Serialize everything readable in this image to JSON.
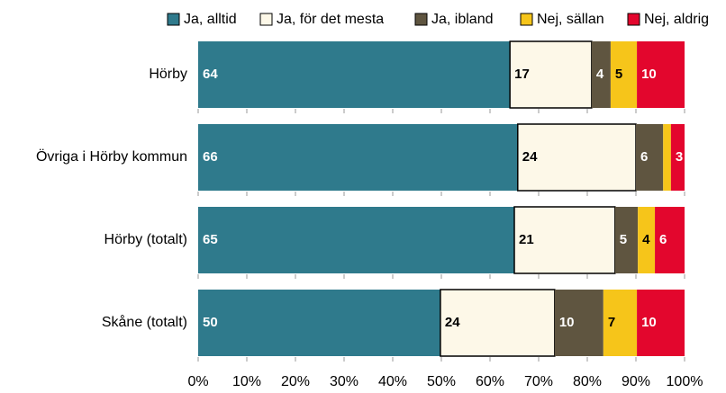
{
  "chart_data": {
    "type": "stacked-barh",
    "categories": [
      "Hörby",
      "Övriga i Hörby kommun",
      "Hörby (totalt)",
      "Skåne (totalt)"
    ],
    "series": [
      {
        "name": "Ja, alltid",
        "color": "#2f7a8c",
        "text_color": "#ffffff",
        "values": [
          64.1,
          65.7,
          65.0,
          49.8
        ],
        "value_labels": [
          "64",
          "66",
          "65",
          "50"
        ]
      },
      {
        "name": "Ja, för det mesta",
        "color": "#fdf8e8",
        "text_color": "#000000",
        "values": [
          16.8,
          24.3,
          20.7,
          23.5
        ],
        "value_labels": [
          "17",
          "24",
          "21",
          "24"
        ]
      },
      {
        "name": "Ja, ibland",
        "color": "#5f5540",
        "text_color": "#ffffff",
        "values": [
          3.9,
          5.6,
          4.7,
          10.0
        ],
        "value_labels": [
          "4",
          "6",
          "5",
          "10"
        ]
      },
      {
        "name": "Nej, sällan",
        "color": "#f6c51a",
        "text_color": "#000000",
        "values": [
          5.4,
          1.6,
          3.5,
          6.9
        ],
        "value_labels": [
          "5",
          null,
          "4",
          "7"
        ]
      },
      {
        "name": "Nej, aldrig",
        "color": "#e3062d",
        "text_color": "#ffffff",
        "values": [
          9.8,
          2.8,
          6.1,
          9.8
        ],
        "value_labels": [
          "10",
          "3",
          "6",
          "10"
        ]
      }
    ],
    "xlim": [
      0,
      100
    ],
    "xticks": [
      {
        "value": 0,
        "label": "0%"
      },
      {
        "value": 10,
        "label": "10%"
      },
      {
        "value": 20,
        "label": "20%"
      },
      {
        "value": 30,
        "label": "30%"
      },
      {
        "value": 40,
        "label": "40%"
      },
      {
        "value": 50,
        "label": "50%"
      },
      {
        "value": 60,
        "label": "60%"
      },
      {
        "value": 70,
        "label": "70%"
      },
      {
        "value": 80,
        "label": "80%"
      },
      {
        "value": 90,
        "label": "90%"
      },
      {
        "value": 100,
        "label": "100%"
      }
    ],
    "legend": "top"
  }
}
